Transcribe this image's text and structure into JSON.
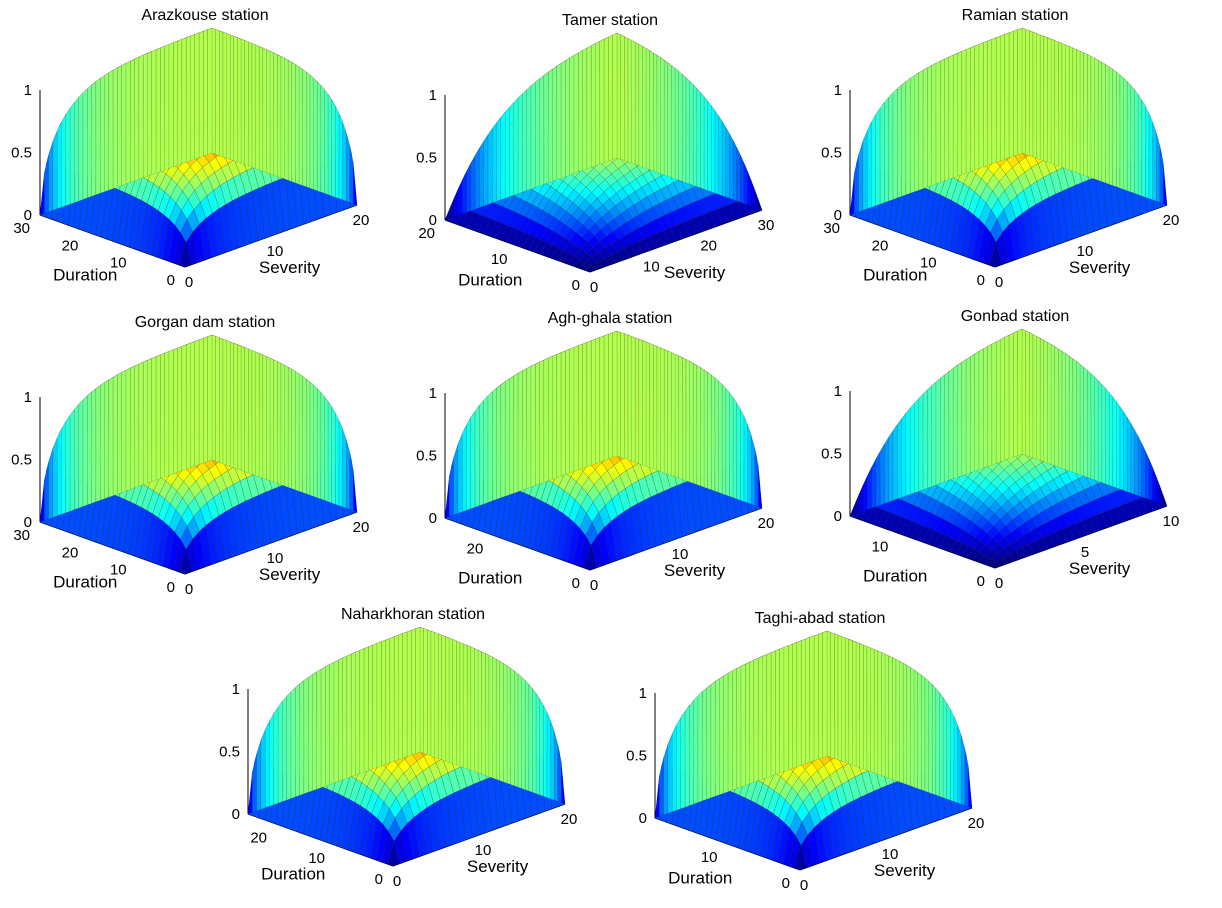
{
  "figure": {
    "colors": {
      "colormap": "jet",
      "edge": "#111111",
      "axis": "#000000",
      "background": "#ffffff"
    }
  },
  "chart_data": [
    {
      "type": "surface",
      "title": "Arazkouse station",
      "xlabel": "Severity",
      "ylabel": "Duration",
      "zlabel": "",
      "xlim": [
        0,
        20
      ],
      "ylim": [
        0,
        30
      ],
      "zlim": [
        0,
        1
      ],
      "xticks": [
        "0",
        "10",
        "20"
      ],
      "yticks": [
        "0",
        "10",
        "20",
        "30"
      ],
      "zticks": [
        "0",
        "0.5",
        "1"
      ],
      "shape": "rounded"
    },
    {
      "type": "surface",
      "title": "Tamer station",
      "xlabel": "Severity",
      "ylabel": "Duration",
      "zlabel": "",
      "xlim": [
        0,
        30
      ],
      "ylim": [
        0,
        20
      ],
      "zlim": [
        0,
        1
      ],
      "xticks": [
        "0",
        "10",
        "20",
        "30"
      ],
      "yticks": [
        "0",
        "10",
        "20"
      ],
      "zticks": [
        "0",
        "0.5",
        "1"
      ],
      "shape": "gradual"
    },
    {
      "type": "surface",
      "title": "Ramian station",
      "xlabel": "Severity",
      "ylabel": "Duration",
      "zlabel": "",
      "xlim": [
        0,
        20
      ],
      "ylim": [
        0,
        30
      ],
      "zlim": [
        0,
        1
      ],
      "xticks": [
        "0",
        "10",
        "20"
      ],
      "yticks": [
        "0",
        "10",
        "20",
        "30"
      ],
      "zticks": [
        "0",
        "0.5",
        "1"
      ],
      "shape": "rounded"
    },
    {
      "type": "surface",
      "title": "Gorgan dam station",
      "xlabel": "Severity",
      "ylabel": "Duration",
      "zlabel": "",
      "xlim": [
        0,
        20
      ],
      "ylim": [
        0,
        30
      ],
      "zlim": [
        0,
        1
      ],
      "xticks": [
        "0",
        "10",
        "20"
      ],
      "yticks": [
        "0",
        "10",
        "20",
        "30"
      ],
      "zticks": [
        "0",
        "0.5",
        "1"
      ],
      "shape": "rounded"
    },
    {
      "type": "surface",
      "title": "Agh-ghala station",
      "xlabel": "Severity",
      "ylabel": "Duration",
      "zlabel": "",
      "xlim": [
        0,
        20
      ],
      "ylim": [
        0,
        30
      ],
      "zlim": [
        0,
        1
      ],
      "xticks": [
        "0",
        "10",
        "20"
      ],
      "yticks": [
        "0",
        "20"
      ],
      "zticks": [
        "0",
        "0.5",
        "1"
      ],
      "shape": "rounded"
    },
    {
      "type": "surface",
      "title": "Gonbad station",
      "xlabel": "Severity",
      "ylabel": "Duration",
      "zlabel": "",
      "xlim": [
        0,
        10
      ],
      "ylim": [
        0,
        15
      ],
      "zlim": [
        0,
        1
      ],
      "xticks": [
        "0",
        "5",
        "10"
      ],
      "yticks": [
        "0",
        "10"
      ],
      "zticks": [
        "0",
        "0.5",
        "1"
      ],
      "shape": "gradual"
    },
    {
      "type": "surface",
      "title": "Naharkhoran station",
      "xlabel": "Severity",
      "ylabel": "Duration",
      "zlabel": "",
      "xlim": [
        0,
        20
      ],
      "ylim": [
        0,
        25
      ],
      "zlim": [
        0,
        1
      ],
      "xticks": [
        "0",
        "10",
        "20"
      ],
      "yticks": [
        "0",
        "10",
        "20"
      ],
      "zticks": [
        "0",
        "0.5",
        "1"
      ],
      "shape": "rounded"
    },
    {
      "type": "surface",
      "title": "Taghi-abad station",
      "xlabel": "Severity",
      "ylabel": "Duration",
      "zlabel": "",
      "xlim": [
        0,
        20
      ],
      "ylim": [
        0,
        20
      ],
      "zlim": [
        0,
        1
      ],
      "xticks": [
        "0",
        "10",
        "20"
      ],
      "yticks": [
        "0",
        "10"
      ],
      "zticks": [
        "0",
        "0.5",
        "1"
      ],
      "shape": "rounded"
    }
  ]
}
